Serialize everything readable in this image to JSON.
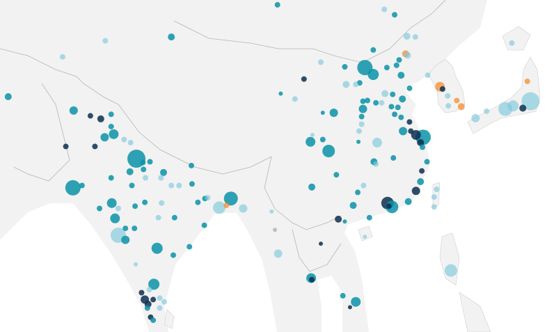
{
  "map": {
    "region": "Asia",
    "colors": {
      "land": "#f2f2f2",
      "sea": "#ffffff",
      "border": "#b5b5b5",
      "teal": "#0a93a8",
      "light": "#7fc8dc",
      "dark": "#0d2f4f",
      "orange": "#f5923a",
      "gray": "#b0b0b0"
    },
    "points": [
      [
        99.0,
        48.7,
        4,
        "teal"
      ],
      [
        115.5,
        48.1,
        4,
        "light"
      ],
      [
        117.1,
        47.4,
        4,
        "teal"
      ],
      [
        82.6,
        44.5,
        5,
        "teal"
      ],
      [
        72.4,
        44.0,
        4,
        "light"
      ],
      [
        119.0,
        44.6,
        5,
        "light"
      ],
      [
        120.3,
        44.5,
        4,
        "light"
      ],
      [
        65.8,
        41.9,
        4,
        "light"
      ],
      [
        113.8,
        42.8,
        4,
        "teal"
      ],
      [
        118.8,
        42.3,
        5,
        "orange"
      ],
      [
        119.1,
        42.1,
        5,
        "light"
      ],
      [
        105.7,
        41.2,
        4,
        "light"
      ],
      [
        109.4,
        40.6,
        4,
        "teal"
      ],
      [
        112.5,
        40.5,
        11,
        "teal"
      ],
      [
        113.8,
        39.6,
        8,
        "teal"
      ],
      [
        115.9,
        40.5,
        4,
        "teal"
      ],
      [
        117.4,
        40.8,
        4,
        "teal"
      ],
      [
        117.8,
        41.5,
        4,
        "teal"
      ],
      [
        118.1,
        39.5,
        5,
        "teal"
      ],
      [
        122.2,
        39.5,
        4,
        "light"
      ],
      [
        111.7,
        38.5,
        4,
        "teal"
      ],
      [
        109.6,
        38.3,
        5,
        "light"
      ],
      [
        119.4,
        37.8,
        4,
        "teal"
      ],
      [
        103.1,
        39.0,
        4,
        "dark"
      ],
      [
        99.5,
        37.1,
        3,
        "teal"
      ],
      [
        101.7,
        36.4,
        4,
        "light"
      ],
      [
        57.4,
        36.7,
        5,
        "teal"
      ],
      [
        115.6,
        37.1,
        5,
        "light"
      ],
      [
        116.8,
        37.0,
        4,
        "teal"
      ],
      [
        115.1,
        35.9,
        4,
        "light"
      ],
      [
        118.3,
        36.4,
        5,
        "teal"
      ],
      [
        116.6,
        35.4,
        4,
        "teal"
      ],
      [
        117.6,
        35.3,
        4,
        "teal"
      ],
      [
        112.2,
        36.1,
        4,
        "teal"
      ],
      [
        112.9,
        36.2,
        4,
        "teal"
      ],
      [
        114.2,
        35.9,
        4,
        "teal"
      ],
      [
        124.1,
        38.0,
        7,
        "orange"
      ],
      [
        124.5,
        37.7,
        4,
        "dark"
      ],
      [
        125.3,
        36.8,
        4,
        "light"
      ],
      [
        126.7,
        36.2,
        4,
        "orange"
      ],
      [
        127.4,
        35.4,
        5,
        "orange"
      ],
      [
        125.4,
        35.5,
        4,
        "light"
      ],
      [
        137.6,
        38.7,
        4,
        "orange"
      ],
      [
        135.2,
        43.7,
        4,
        "light"
      ],
      [
        138.1,
        36.1,
        13,
        "light"
      ],
      [
        135.4,
        35.5,
        8,
        "light"
      ],
      [
        134.2,
        35.1,
        10,
        "light"
      ],
      [
        136.9,
        35.2,
        5,
        "dark"
      ],
      [
        131.3,
        34.8,
        4,
        "light"
      ],
      [
        129.6,
        33.9,
        6,
        "light"
      ],
      [
        67.5,
        34.9,
        6,
        "teal"
      ],
      [
        70.1,
        34.2,
        4,
        "dark"
      ],
      [
        71.7,
        33.8,
        5,
        "dark"
      ],
      [
        73.3,
        34.4,
        4,
        "teal"
      ],
      [
        73.3,
        32.8,
        4,
        "teal"
      ],
      [
        72.3,
        31.4,
        6,
        "teal"
      ],
      [
        73.7,
        31.8,
        7,
        "teal"
      ],
      [
        75.3,
        31.1,
        4,
        "light"
      ],
      [
        76.3,
        30.7,
        4,
        "light"
      ],
      [
        66.3,
        30.2,
        4,
        "dark"
      ],
      [
        70.8,
        30.2,
        4,
        "dark"
      ],
      [
        77.2,
        28.6,
        13,
        "teal"
      ],
      [
        78.2,
        28.1,
        4,
        "teal"
      ],
      [
        79.3,
        28.2,
        4,
        "teal"
      ],
      [
        76.2,
        26.9,
        5,
        "teal"
      ],
      [
        78.3,
        27.2,
        4,
        "teal"
      ],
      [
        81.4,
        26.8,
        5,
        "teal"
      ],
      [
        78.6,
        26.1,
        4,
        "light"
      ],
      [
        85.7,
        27.7,
        4,
        "teal"
      ],
      [
        67.4,
        24.8,
        11,
        "teal"
      ],
      [
        68.8,
        25.1,
        4,
        "teal"
      ],
      [
        73.3,
        26.1,
        4,
        "teal"
      ],
      [
        76.5,
        25.1,
        4,
        "teal"
      ],
      [
        82.6,
        25.1,
        4,
        "light"
      ],
      [
        83.8,
        25.1,
        4,
        "light"
      ],
      [
        85.8,
        25.3,
        4,
        "teal"
      ],
      [
        81.0,
        26.1,
        4,
        "light"
      ],
      [
        73.4,
        22.8,
        7,
        "teal"
      ],
      [
        71.5,
        22.1,
        4,
        "teal"
      ],
      [
        74.4,
        22.1,
        4,
        "light"
      ],
      [
        77.0,
        22.4,
        4,
        "teal"
      ],
      [
        78.5,
        22.9,
        4,
        "teal"
      ],
      [
        81.1,
        22.8,
        4,
        "light"
      ],
      [
        86.7,
        22.9,
        4,
        "teal"
      ],
      [
        87.8,
        23.4,
        4,
        "teal"
      ],
      [
        88.2,
        23.5,
        4,
        "light"
      ],
      [
        90.0,
        22.2,
        9,
        "light"
      ],
      [
        91.1,
        22.5,
        4,
        "orange"
      ],
      [
        91.8,
        23.4,
        10,
        "teal"
      ],
      [
        93.7,
        22.1,
        6,
        "light"
      ],
      [
        73.9,
        20.8,
        7,
        "teal"
      ],
      [
        74.4,
        18.6,
        11,
        "light"
      ],
      [
        75.5,
        18.0,
        6,
        "teal"
      ],
      [
        75.5,
        19.5,
        4,
        "teal"
      ],
      [
        76.9,
        19.5,
        4,
        "teal"
      ],
      [
        80.6,
        20.9,
        4,
        "light"
      ],
      [
        83.1,
        20.9,
        4,
        "teal"
      ],
      [
        87.7,
        19.9,
        4,
        "teal"
      ],
      [
        80.4,
        16.9,
        8,
        "teal"
      ],
      [
        85.4,
        17.1,
        4,
        "teal"
      ],
      [
        82.9,
        16.0,
        4,
        "teal"
      ],
      [
        77.1,
        14.8,
        3,
        "light"
      ],
      [
        79.9,
        12.2,
        8,
        "teal"
      ],
      [
        79.2,
        11.5,
        4,
        "light"
      ],
      [
        78.0,
        11.1,
        4,
        "dark"
      ],
      [
        78.5,
        10.2,
        6,
        "dark"
      ],
      [
        79.0,
        9.6,
        5,
        "dark"
      ],
      [
        79.8,
        10.2,
        4,
        "dark"
      ],
      [
        80.8,
        10.4,
        4,
        "light"
      ],
      [
        81.5,
        9.9,
        4,
        "light"
      ],
      [
        80.8,
        9.1,
        4,
        "light"
      ],
      [
        78.9,
        9.1,
        4,
        "teal"
      ],
      [
        79.4,
        7.9,
        4,
        "dark"
      ],
      [
        79.8,
        7.5,
        4,
        "teal"
      ],
      [
        98.1,
        21.7,
        3,
        "light"
      ],
      [
        98.6,
        19.3,
        3,
        "gray"
      ],
      [
        99.1,
        16.2,
        6,
        "light"
      ],
      [
        105.7,
        17.5,
        3,
        "dark"
      ],
      [
        104.2,
        13.0,
        7,
        "teal"
      ],
      [
        104.3,
        12.8,
        4,
        "dark"
      ],
      [
        108.4,
        20.7,
        5,
        "dark"
      ],
      [
        109.4,
        20.4,
        3,
        "teal"
      ],
      [
        109.1,
        10.7,
        4,
        "teal"
      ],
      [
        110.2,
        9.2,
        3,
        "dark"
      ],
      [
        111.1,
        9.9,
        7,
        "teal"
      ],
      [
        112.5,
        18.4,
        3,
        "light"
      ],
      [
        116.0,
        22.8,
        9,
        "dark"
      ],
      [
        116.7,
        22.3,
        9,
        "teal"
      ],
      [
        116.2,
        22.4,
        4,
        "dark"
      ],
      [
        113.2,
        20.9,
        4,
        "teal"
      ],
      [
        110.7,
        22.5,
        5,
        "teal"
      ],
      [
        111.4,
        24.2,
        4,
        "teal"
      ],
      [
        112.3,
        25.1,
        4,
        "light"
      ],
      [
        104.3,
        24.9,
        5,
        "teal"
      ],
      [
        108.1,
        26.5,
        4,
        "teal"
      ],
      [
        113.9,
        28.2,
        5,
        "teal"
      ],
      [
        114.2,
        27.9,
        4,
        "light"
      ],
      [
        114.4,
        30.7,
        7,
        "light"
      ],
      [
        116.9,
        28.7,
        4,
        "teal"
      ],
      [
        119.2,
        23.0,
        5,
        "teal"
      ],
      [
        120.4,
        24.4,
        6,
        "dark"
      ],
      [
        121.1,
        25.6,
        5,
        "teal"
      ],
      [
        121.3,
        27.0,
        4,
        "dark"
      ],
      [
        122.1,
        28.2,
        4,
        "teal"
      ],
      [
        123.6,
        24.6,
        4,
        "light"
      ],
      [
        123.2,
        22.3,
        4,
        "light"
      ],
      [
        123.2,
        23.6,
        4,
        "light"
      ],
      [
        125.8,
        14.0,
        9,
        "light"
      ],
      [
        106.9,
        29.6,
        9,
        "teal"
      ],
      [
        104.1,
        30.8,
        7,
        "teal"
      ],
      [
        106.0,
        31.1,
        4,
        "teal"
      ],
      [
        104.4,
        31.7,
        3,
        "light"
      ],
      [
        111.5,
        30.8,
        3,
        "teal"
      ],
      [
        111.6,
        32.2,
        4,
        "light"
      ],
      [
        112.2,
        35.1,
        6,
        "teal"
      ],
      [
        107.7,
        34.6,
        6,
        "teal"
      ],
      [
        106.0,
        34.6,
        3,
        "teal"
      ],
      [
        112.0,
        34.1,
        4,
        "teal"
      ],
      [
        112.0,
        33.1,
        4,
        "light"
      ],
      [
        118.4,
        32.2,
        6,
        "teal"
      ],
      [
        119.6,
        32.2,
        4,
        "dark"
      ],
      [
        120.4,
        31.7,
        7,
        "dark"
      ],
      [
        121.5,
        31.4,
        11,
        "teal"
      ],
      [
        121.1,
        30.7,
        5,
        "dark"
      ],
      [
        121.4,
        30.1,
        4,
        "teal"
      ],
      [
        119.4,
        33.4,
        4,
        "dark"
      ],
      [
        118.1,
        34.0,
        4,
        "teal"
      ],
      [
        117.1,
        34.4,
        4,
        "teal"
      ],
      [
        111.1,
        38.3,
        4,
        "light"
      ],
      [
        131.5,
        4.4,
        3,
        "light"
      ]
    ]
  }
}
